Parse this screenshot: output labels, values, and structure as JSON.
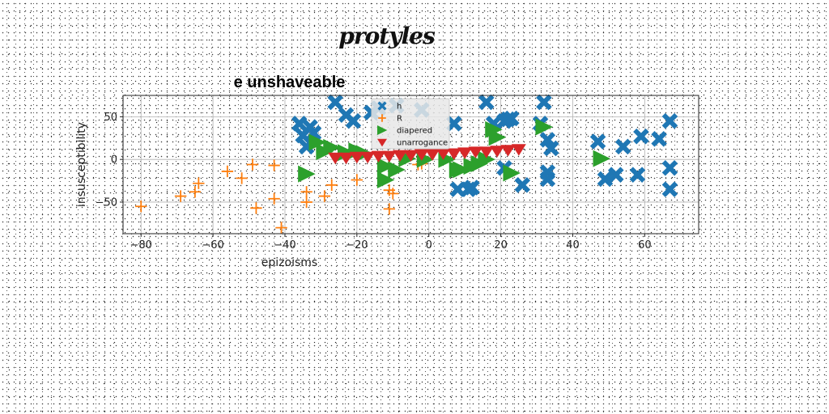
{
  "figure": {
    "suptitle": "protyles"
  },
  "chart_data": {
    "type": "scatter",
    "title": "e unshaveable",
    "xlabel": "epizoisms",
    "ylabel": "insusceptibility",
    "xlim": [
      -85,
      75
    ],
    "ylim": [
      -87,
      75
    ],
    "xticks": [
      -80,
      -60,
      -40,
      -20,
      0,
      20,
      40,
      60
    ],
    "yticks": [
      -50,
      0,
      50
    ],
    "grid": true,
    "legend_position": "upper-center",
    "series": [
      {
        "name": "h",
        "marker": "X",
        "color": "#1f77b4",
        "points": [
          [
            -26,
            67
          ],
          [
            -23,
            52
          ],
          [
            -21,
            45
          ],
          [
            -16,
            55
          ],
          [
            -14,
            60
          ],
          [
            -9,
            63
          ],
          [
            -2,
            58
          ],
          [
            -36,
            42
          ],
          [
            -35,
            28
          ],
          [
            -33,
            38
          ],
          [
            -32,
            31
          ],
          [
            -34,
            15
          ],
          [
            7,
            42
          ],
          [
            8,
            -35
          ],
          [
            11,
            -35
          ],
          [
            12,
            -33
          ],
          [
            16,
            67
          ],
          [
            18,
            42
          ],
          [
            21,
            45
          ],
          [
            22,
            47
          ],
          [
            23,
            48
          ],
          [
            21,
            -10
          ],
          [
            26,
            -30
          ],
          [
            31,
            42
          ],
          [
            32,
            67
          ],
          [
            33,
            23
          ],
          [
            33,
            -15
          ],
          [
            33,
            -23
          ],
          [
            34,
            13
          ],
          [
            47,
            21
          ],
          [
            49,
            -23
          ],
          [
            52,
            -18
          ],
          [
            54,
            15
          ],
          [
            58,
            -18
          ],
          [
            59,
            27
          ],
          [
            64,
            24
          ],
          [
            67,
            45
          ],
          [
            67,
            -10
          ],
          [
            67,
            -35
          ]
        ]
      },
      {
        "name": "R",
        "marker": "+",
        "color": "#ff7f0e",
        "points": [
          [
            -80,
            -55
          ],
          [
            -69,
            -43
          ],
          [
            -65,
            -38
          ],
          [
            -64,
            -28
          ],
          [
            -56,
            -14
          ],
          [
            -52,
            -22
          ],
          [
            -49,
            -6
          ],
          [
            -48,
            -57
          ],
          [
            -43,
            -7
          ],
          [
            -43,
            -46
          ],
          [
            -41,
            -80
          ],
          [
            -34,
            -38
          ],
          [
            -34,
            -50
          ],
          [
            -29,
            -43
          ],
          [
            -27,
            -30
          ],
          [
            -20,
            -24
          ],
          [
            -11,
            -36
          ],
          [
            -11,
            -58
          ],
          [
            -10,
            -40
          ],
          [
            -3,
            -6
          ],
          [
            -2,
            -5
          ]
        ]
      },
      {
        "name": "diapered",
        "marker": ">",
        "color": "#2ca02c",
        "points": [
          [
            -31,
            20
          ],
          [
            -29,
            9
          ],
          [
            -27,
            14
          ],
          [
            -34,
            -17
          ],
          [
            -23,
            8
          ],
          [
            -20,
            10
          ],
          [
            -18,
            7
          ],
          [
            -12,
            -8
          ],
          [
            -12,
            -24
          ],
          [
            -9,
            -12
          ],
          [
            -6,
            1
          ],
          [
            -1,
            0
          ],
          [
            5,
            0
          ],
          [
            8,
            -12
          ],
          [
            9,
            -12
          ],
          [
            12,
            -8
          ],
          [
            14,
            -5
          ],
          [
            16,
            0
          ],
          [
            18,
            35
          ],
          [
            19,
            26
          ],
          [
            23,
            -16
          ],
          [
            32,
            38
          ],
          [
            48,
            1
          ]
        ]
      },
      {
        "name": "unarrogance",
        "marker": "v",
        "color": "#d62728",
        "points": [
          [
            -26,
            2
          ],
          [
            -23,
            2
          ],
          [
            -20,
            3
          ],
          [
            -17,
            3
          ],
          [
            -14,
            4
          ],
          [
            -11,
            4
          ],
          [
            -8,
            5
          ],
          [
            -5,
            5
          ],
          [
            -2,
            6
          ],
          [
            1,
            6
          ],
          [
            4,
            7
          ],
          [
            7,
            7
          ],
          [
            10,
            8
          ],
          [
            13,
            9
          ],
          [
            16,
            9
          ],
          [
            19,
            10
          ],
          [
            22,
            11
          ],
          [
            25,
            12
          ]
        ]
      }
    ]
  }
}
